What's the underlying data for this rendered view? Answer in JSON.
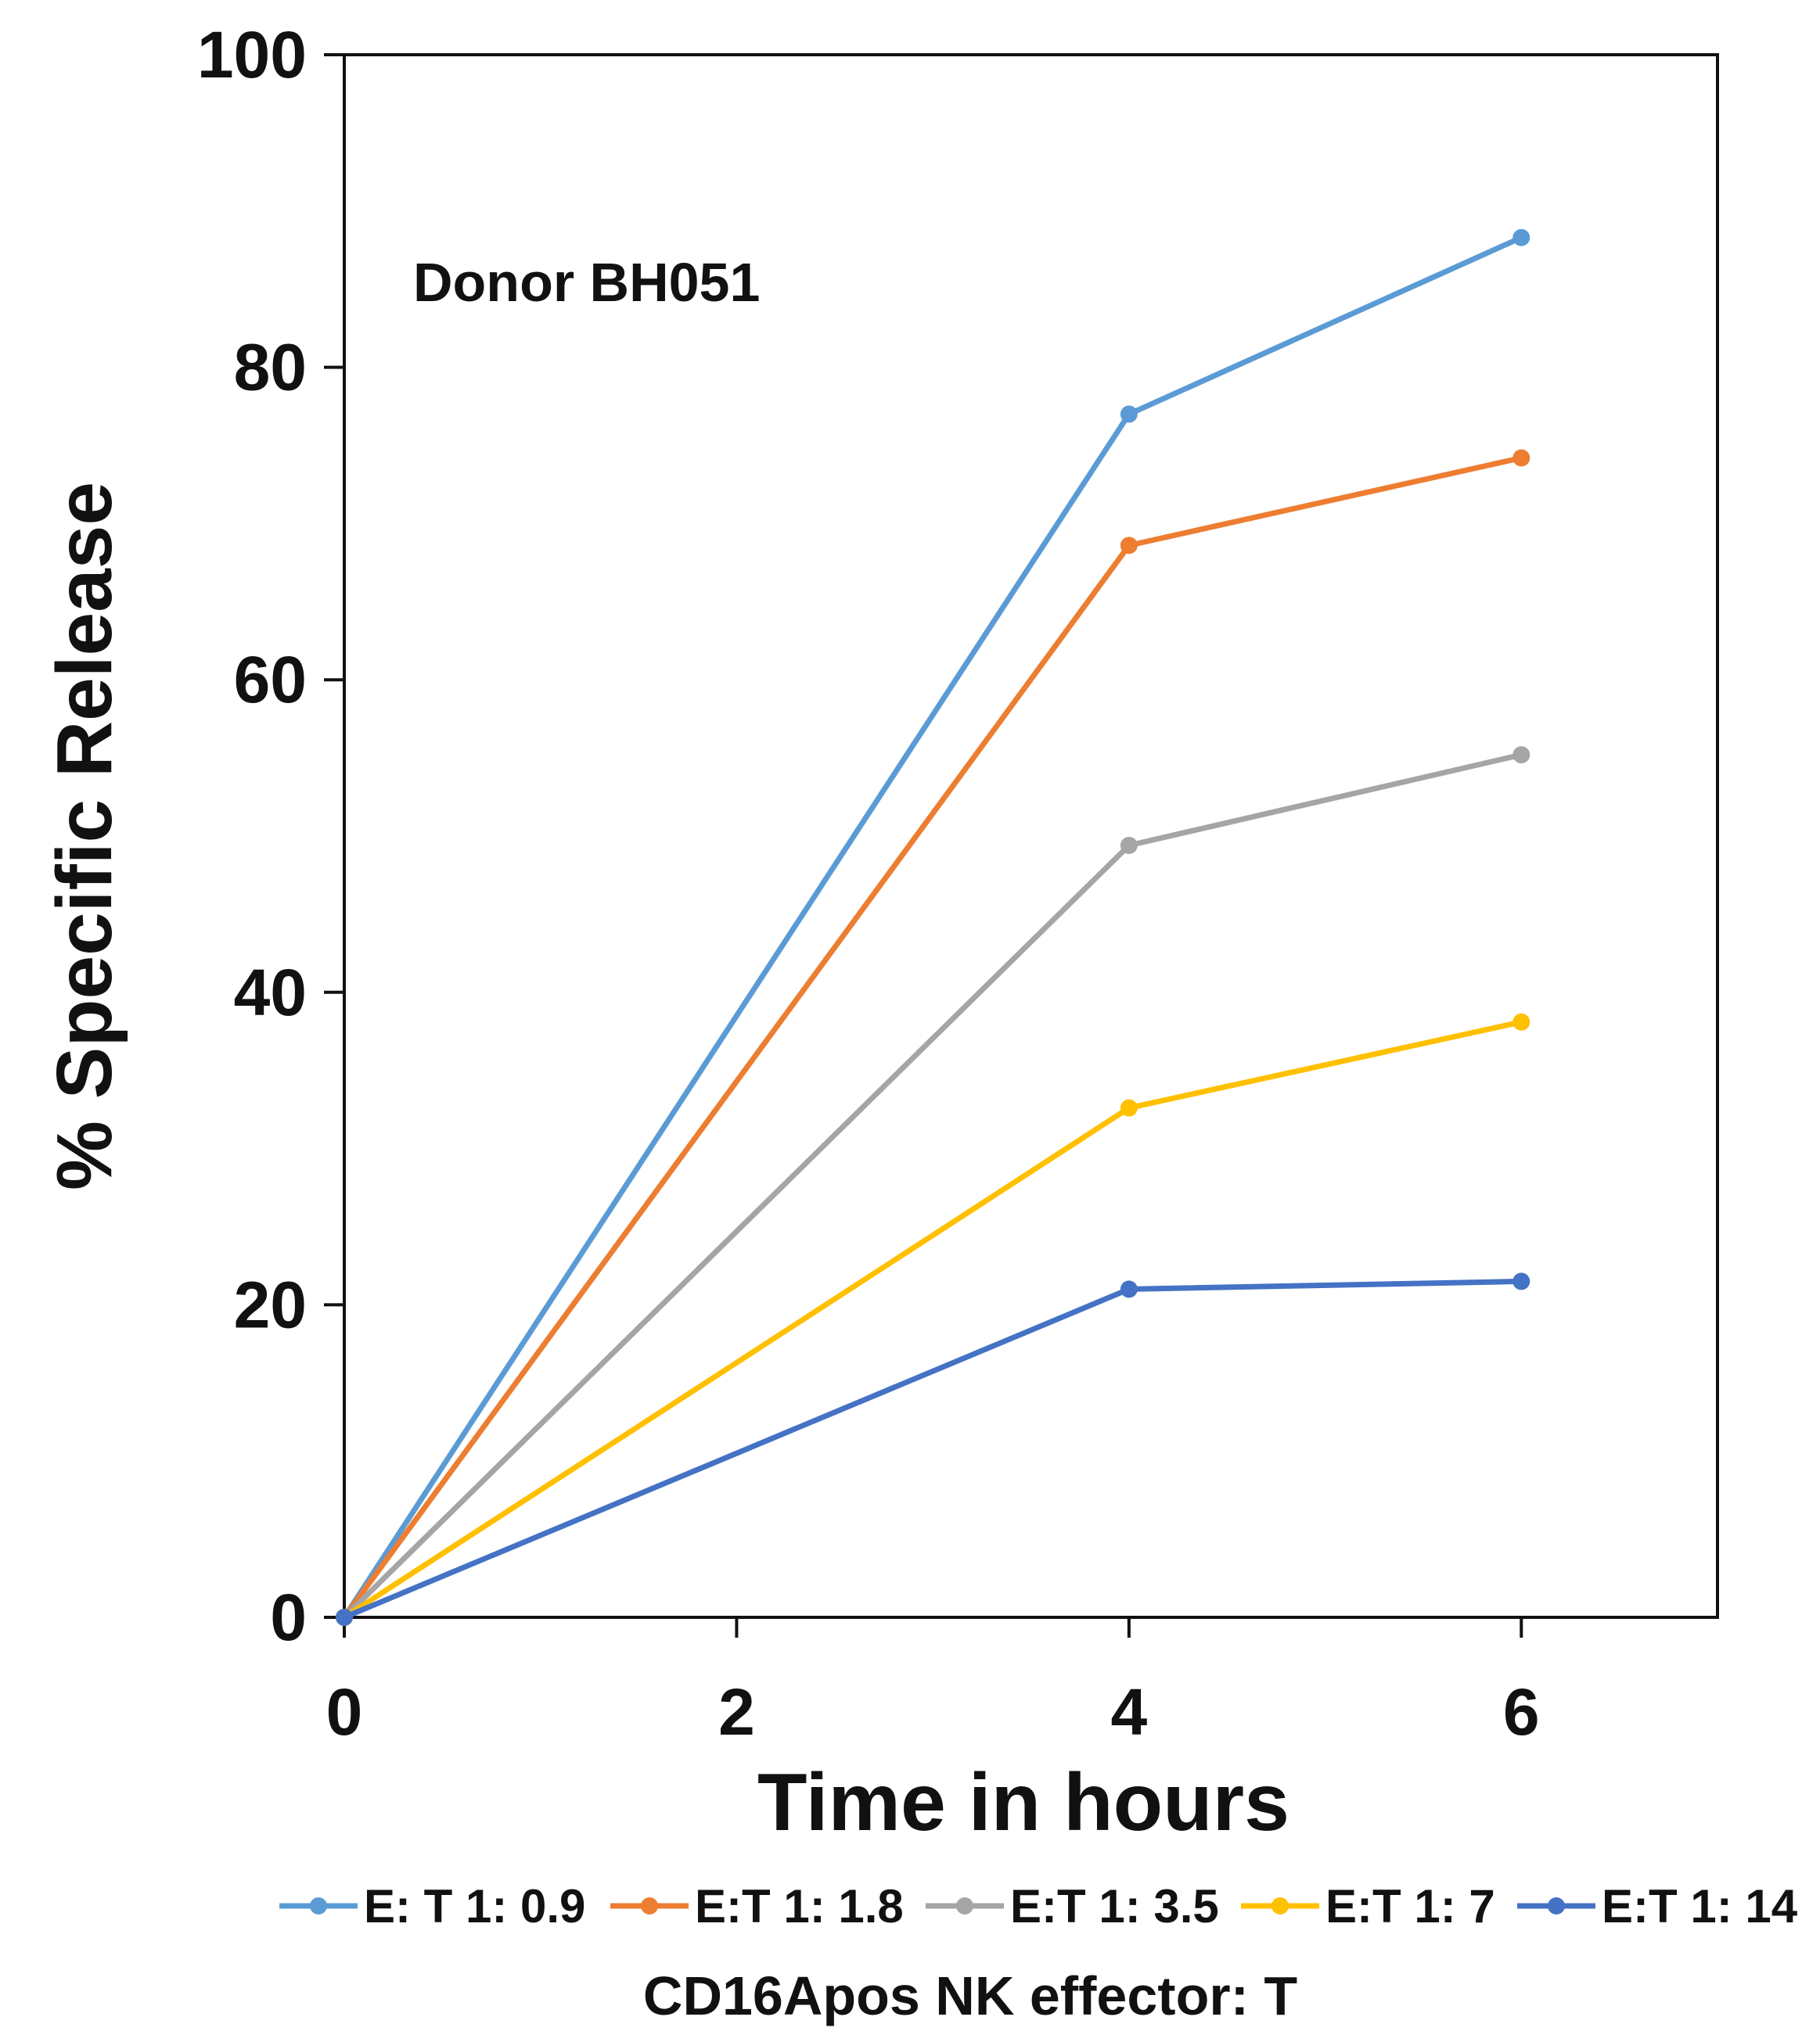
{
  "chart_data": {
    "type": "line",
    "title": "",
    "xlabel": "Time in hours",
    "ylabel": "% Specific Release",
    "xlim": [
      0,
      7
    ],
    "ylim": [
      0,
      100
    ],
    "x_ticks": [
      0,
      2,
      4,
      6
    ],
    "y_ticks": [
      0,
      20,
      40,
      60,
      80,
      100
    ],
    "grid": false,
    "annotation": "Donor BH051",
    "legend_title": "CD16Apos NK effector: T",
    "legend_position": "bottom",
    "x": [
      0,
      4,
      6
    ],
    "series": [
      {
        "name": "E: T 1: 0.9",
        "color": "#5B9BD5",
        "values": [
          0,
          77,
          88.3
        ]
      },
      {
        "name": "E:T 1: 1.8",
        "color": "#ED7D31",
        "values": [
          0,
          68.6,
          74.2
        ]
      },
      {
        "name": "E:T 1: 3.5",
        "color": "#A5A5A5",
        "values": [
          0,
          49.4,
          55.2
        ]
      },
      {
        "name": "E:T 1: 7",
        "color": "#FFC000",
        "values": [
          0,
          32.6,
          38.1
        ]
      },
      {
        "name": "E:T 1: 14",
        "color": "#4472C4",
        "values": [
          0,
          21,
          21.5
        ]
      }
    ]
  }
}
